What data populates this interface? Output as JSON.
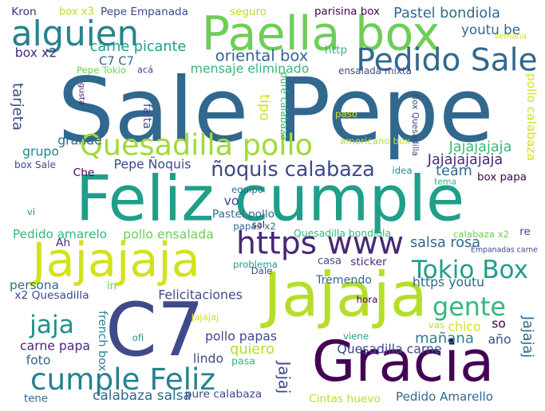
{
  "palette": [
    "#440154",
    "#482878",
    "#3e4a89",
    "#31688e",
    "#26828e",
    "#1f9e89",
    "#35b779",
    "#6ece58",
    "#b5de2b",
    "#fde725"
  ],
  "words": [
    {
      "text": "Sale Pepe",
      "color": "#31688e"
    },
    {
      "text": "Feliz cumple",
      "color": "#1f9e89"
    },
    {
      "text": "Paella box",
      "color": "#6ece58"
    },
    {
      "text": "Jajajaja",
      "color": "#d2e21b"
    },
    {
      "text": "Jajaja",
      "color": "#b5de2b"
    },
    {
      "text": "C7",
      "color": "#3e4a89"
    },
    {
      "text": "Gracia",
      "color": "#440154"
    },
    {
      "text": "Quesadilla pollo",
      "color": "#a0da39"
    },
    {
      "text": "alguien",
      "color": "#26828e"
    },
    {
      "text": "Pedido Sale",
      "color": "#31688e"
    },
    {
      "text": "https www",
      "color": "#482878"
    },
    {
      "text": "cumple Feliz",
      "color": "#26828e"
    },
    {
      "text": "Tokio Box",
      "color": "#1f9e89"
    },
    {
      "text": "gente",
      "color": "#35b779"
    },
    {
      "text": "jaja",
      "color": "#21918c"
    },
    {
      "text": "ñoquis calabaza",
      "color": "#3e4a89"
    },
    {
      "text": "oriental box",
      "color": "#31688e"
    },
    {
      "text": "Kron",
      "color": "#482878"
    },
    {
      "text": "box x3",
      "color": "#b5de2b"
    },
    {
      "text": "Pepe Empanada",
      "color": "#3e4a89"
    },
    {
      "text": "seguro",
      "color": "#b5de2b"
    },
    {
      "text": "parisina box",
      "color": "#440154"
    },
    {
      "text": "Pastel bondiola",
      "color": "#31688e"
    },
    {
      "text": "youtu be",
      "color": "#31688e"
    },
    {
      "text": "semana",
      "color": "#d2e21b"
    },
    {
      "text": "carne picante",
      "color": "#1f9e89"
    },
    {
      "text": "box x2",
      "color": "#482878"
    },
    {
      "text": "C7 C7",
      "color": "#31688e"
    },
    {
      "text": "Pepe Tokio",
      "color": "#6ece58"
    },
    {
      "text": "acá",
      "color": "#3e4a89"
    },
    {
      "text": "mensaje eliminado",
      "color": "#35b779"
    },
    {
      "text": "http",
      "color": "#35b779"
    },
    {
      "text": "ensalada mixta",
      "color": "#3e4a89"
    },
    {
      "text": "pollo calabaza",
      "color": "#d2e21b"
    },
    {
      "text": "gusta",
      "color": "#482878"
    },
    {
      "text": "falta",
      "color": "#3e4a89"
    },
    {
      "text": "tipo",
      "color": "#d2e21b"
    },
    {
      "text": "puré calabaza",
      "color": "#35b779"
    },
    {
      "text": "paso",
      "color": "#d2e21b"
    },
    {
      "text": "Box Quesadilla",
      "color": "#3e4a89"
    },
    {
      "text": "tarjeta",
      "color": "#3e4a89"
    },
    {
      "text": "grupo",
      "color": "#26828e"
    },
    {
      "text": "grande",
      "color": "#31688e"
    },
    {
      "text": "box Sale",
      "color": "#3e4a89"
    },
    {
      "text": "americano box",
      "color": "#b5de2b"
    },
    {
      "text": "Jajajajaja",
      "color": "#35b779"
    },
    {
      "text": "Jajajajajaja",
      "color": "#482878"
    },
    {
      "text": "idea",
      "color": "#21918c"
    },
    {
      "text": "Che",
      "color": "#440154"
    },
    {
      "text": "Pepe Ñoquis",
      "color": "#3e4a89"
    },
    {
      "text": "team",
      "color": "#31688e"
    },
    {
      "text": "box papa",
      "color": "#440154"
    },
    {
      "text": "tema",
      "color": "#35b779"
    },
    {
      "text": "equipo",
      "color": "#31688e"
    },
    {
      "text": "vo",
      "color": "#3e4a89"
    },
    {
      "text": "vi",
      "color": "#21918c"
    },
    {
      "text": "Pastel pollo",
      "color": "#31688e"
    },
    {
      "text": "sal",
      "color": "#440154"
    },
    {
      "text": "papas x2",
      "color": "#31688e"
    },
    {
      "text": "Pedido amarelo",
      "color": "#35b779"
    },
    {
      "text": "pollo ensalada",
      "color": "#6ece58"
    },
    {
      "text": "Quesadilla bondiola",
      "color": "#35b779"
    },
    {
      "text": "calabaza x2",
      "color": "#6ece58"
    },
    {
      "text": "re",
      "color": "#3e4a89"
    },
    {
      "text": "Ah",
      "color": "#482878"
    },
    {
      "text": "salsa rosa",
      "color": "#31688e"
    },
    {
      "text": "Empanadas carne",
      "color": "#3e4a89"
    },
    {
      "text": "persona",
      "color": "#31688e"
    },
    {
      "text": "problema",
      "color": "#1f9e89"
    },
    {
      "text": "Dale",
      "color": "#3e4a89"
    },
    {
      "text": "casa",
      "color": "#3e4a89"
    },
    {
      "text": "sticker",
      "color": "#482878"
    },
    {
      "text": "Tremendo",
      "color": "#31688e"
    },
    {
      "text": "https youtu",
      "color": "#31688e"
    },
    {
      "text": "x2 Quesadilla",
      "color": "#3e4a89"
    },
    {
      "text": "in",
      "color": "#6ece58"
    },
    {
      "text": "Felicitaciones",
      "color": "#3e4a89"
    },
    {
      "text": "hora",
      "color": "#440154"
    },
    {
      "text": "Jajajaj",
      "color": "#d2e21b"
    },
    {
      "text": "ofi",
      "color": "#21918c"
    },
    {
      "text": "french box",
      "color": "#26828e"
    },
    {
      "text": "mañana",
      "color": "#26828e"
    },
    {
      "text": "Jajajaj",
      "color": "#31688e"
    },
    {
      "text": "viene",
      "color": "#1f9e89"
    },
    {
      "text": "vas",
      "color": "#b5de2b"
    },
    {
      "text": "chico",
      "color": "#d2e21b"
    },
    {
      "text": "so",
      "color": "#440154"
    },
    {
      "text": "año",
      "color": "#3e4a89"
    },
    {
      "text": "carne papa",
      "color": "#482878"
    },
    {
      "text": "pollo papas",
      "color": "#3e4a89"
    },
    {
      "text": "quiero",
      "color": "#b5de2b"
    },
    {
      "text": "Quesadilla carne",
      "color": "#3e4a89"
    },
    {
      "text": "foto",
      "color": "#31688e"
    },
    {
      "text": "lindo",
      "color": "#3e4a89"
    },
    {
      "text": "pasa",
      "color": "#35b779"
    },
    {
      "text": "Jajaj",
      "color": "#3e4a89"
    },
    {
      "text": "tene",
      "color": "#31688e"
    },
    {
      "text": "calabaza salsa",
      "color": "#31688e"
    },
    {
      "text": "pure calabaza",
      "color": "#3e4a89"
    },
    {
      "text": "Cintas huevo",
      "color": "#b5de2b"
    },
    {
      "text": "Pedido Amarello",
      "color": "#31688e"
    }
  ]
}
